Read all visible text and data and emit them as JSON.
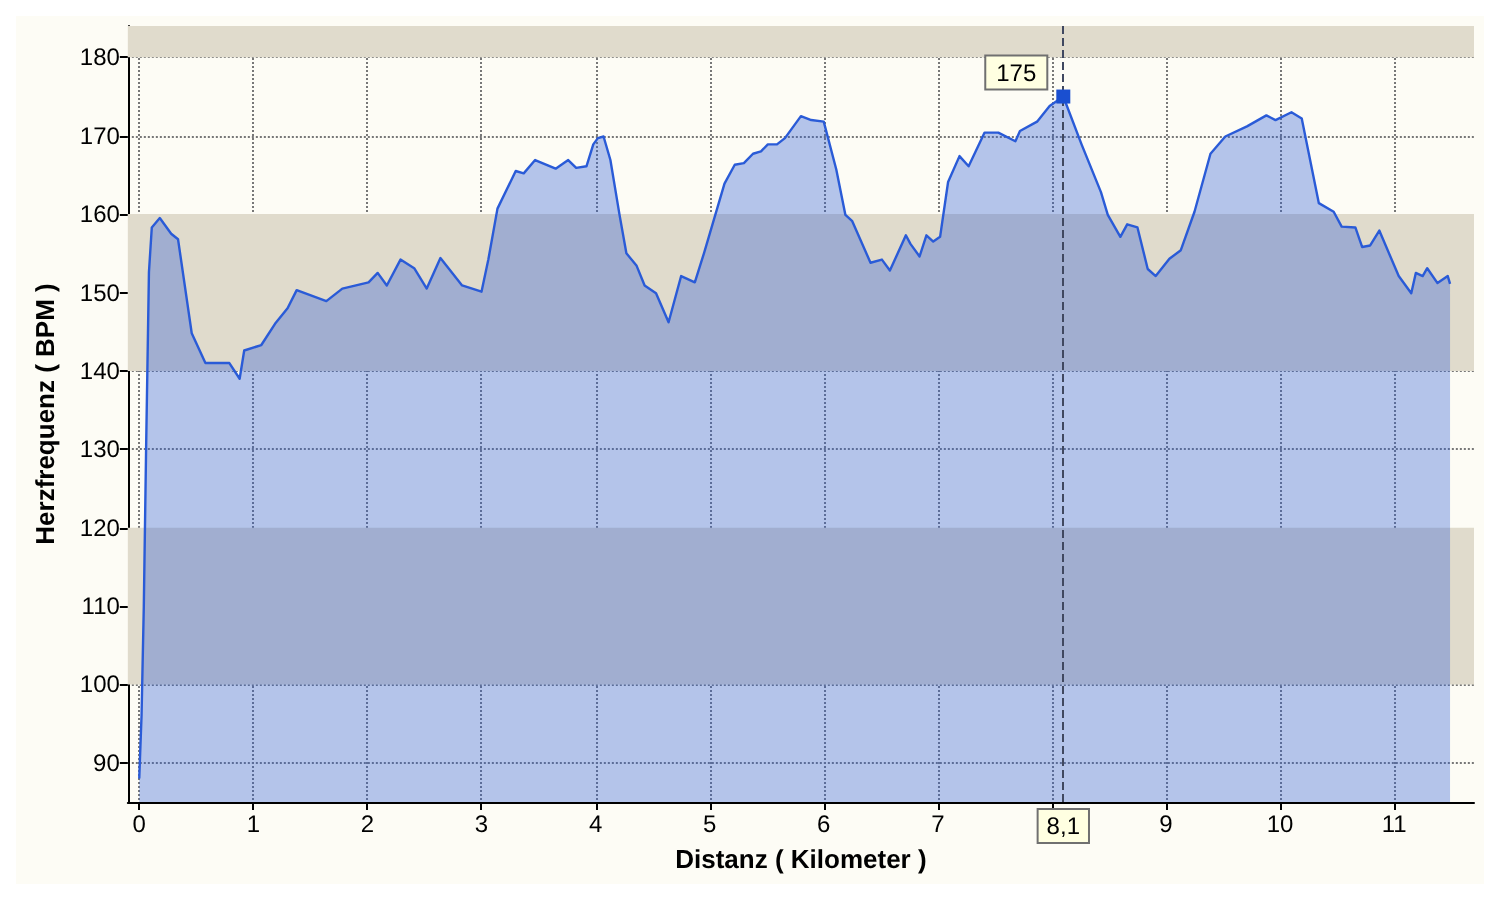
{
  "chart_data": {
    "type": "area",
    "xlabel": "Distanz ( Kilometer )",
    "ylabel": "Herzfrequenz ( BPM )",
    "xlim": [
      -0.1,
      11.7
    ],
    "ylim": [
      85,
      184
    ],
    "xticks": [
      0,
      1,
      2,
      3,
      4,
      5,
      6,
      7,
      {
        "value": 8,
        "label": null
      },
      9,
      10,
      11
    ],
    "yticks": [
      90,
      100,
      110,
      120,
      130,
      140,
      150,
      160,
      170,
      180
    ],
    "grid": true,
    "marker": "none",
    "line_style": "solid",
    "series": [
      {
        "color": "#2a5bd7",
        "x": [
          0,
          0.02,
          0.04,
          0.06,
          0.085,
          0.11,
          0.18,
          0.28,
          0.34,
          0.46,
          0.58,
          0.79,
          0.88,
          0.92,
          1.07,
          1.19,
          1.3,
          1.38,
          1.64,
          1.78,
          1.9,
          2.01,
          2.09,
          2.17,
          2.29,
          2.41,
          2.52,
          2.64,
          2.83,
          3.0,
          3.06,
          3.14,
          3.3,
          3.37,
          3.47,
          3.65,
          3.76,
          3.83,
          3.92,
          3.98,
          4.02,
          4.07,
          4.13,
          4.21,
          4.27,
          4.36,
          4.43,
          4.53,
          4.64,
          4.75,
          4.87,
          4.95,
          5.13,
          5.22,
          5.3,
          5.38,
          5.45,
          5.51,
          5.59,
          5.66,
          5.8,
          5.89,
          6.0,
          6.11,
          6.19,
          6.25,
          6.41,
          6.51,
          6.58,
          6.72,
          6.76,
          6.84,
          6.9,
          6.96,
          7.02,
          7.09,
          7.19,
          7.27,
          7.41,
          7.53,
          7.68,
          7.72,
          7.87,
          7.98,
          8.05,
          8.1,
          8.26,
          8.43,
          8.49,
          8.6,
          8.66,
          8.75,
          8.84,
          8.91,
          9.03,
          9.13,
          9.25,
          9.39,
          9.52,
          9.71,
          9.88,
          9.96,
          10.1,
          10.19,
          10.34,
          10.47,
          10.54,
          10.66,
          10.72,
          10.79,
          10.87,
          11.04,
          11.15,
          11.19,
          11.25,
          11.29,
          11.38,
          11.47,
          11.49
        ],
        "values": [
          88,
          96,
          110,
          130,
          152.6,
          158.3,
          159.5,
          157.5,
          156.8,
          144.8,
          141,
          141,
          139,
          142.6,
          143.3,
          146,
          148,
          150.3,
          148.9,
          150.5,
          150.9,
          151.3,
          152.5,
          150.9,
          154.2,
          153.1,
          150.5,
          154.4,
          150.9,
          150.1,
          154.2,
          160.7,
          165.5,
          165.2,
          166.9,
          165.8,
          166.9,
          165.9,
          166.1,
          168.9,
          169.7,
          169.9,
          166.9,
          159.9,
          155,
          153.4,
          150.9,
          149.9,
          146.2,
          152.1,
          151.3,
          155,
          163.9,
          166.3,
          166.5,
          167.7,
          168,
          168.9,
          168.9,
          169.7,
          172.5,
          172,
          171.8,
          165.7,
          159.9,
          159.1,
          153.8,
          154.2,
          152.8,
          157.3,
          156.2,
          154.6,
          157.3,
          156.5,
          157.1,
          164.1,
          167.4,
          166.1,
          170.4,
          170.4,
          169.3,
          170.6,
          171.8,
          173.8,
          174.5,
          175,
          168.9,
          162.8,
          159.9,
          157.1,
          158.7,
          158.3,
          153,
          152.1,
          154.3,
          155.4,
          160.3,
          167.7,
          169.9,
          171.2,
          172.6,
          172,
          173,
          172.2,
          161.4,
          160.3,
          158.4,
          158.3,
          155.8,
          156,
          157.9,
          152.1,
          149.9,
          152.5,
          152.1,
          153.1,
          151.2,
          152.1,
          151.1
        ]
      }
    ],
    "bands": [
      {
        "axis": "y",
        "from": 100,
        "to": 120,
        "color": "#e0dbcc"
      },
      {
        "axis": "y",
        "from": 140,
        "to": 160,
        "color": "#e0dbcc"
      },
      {
        "axis": "y",
        "from": 180,
        "to": 184,
        "color": "#e0dbcc"
      }
    ],
    "ref_lines": [
      {
        "axis": "x",
        "value": 8.1,
        "label": "8,1",
        "line_style": "dashed",
        "color": "#404860"
      }
    ],
    "annotations": [
      {
        "text": "175",
        "x": 8.1,
        "y": 175
      }
    ]
  }
}
